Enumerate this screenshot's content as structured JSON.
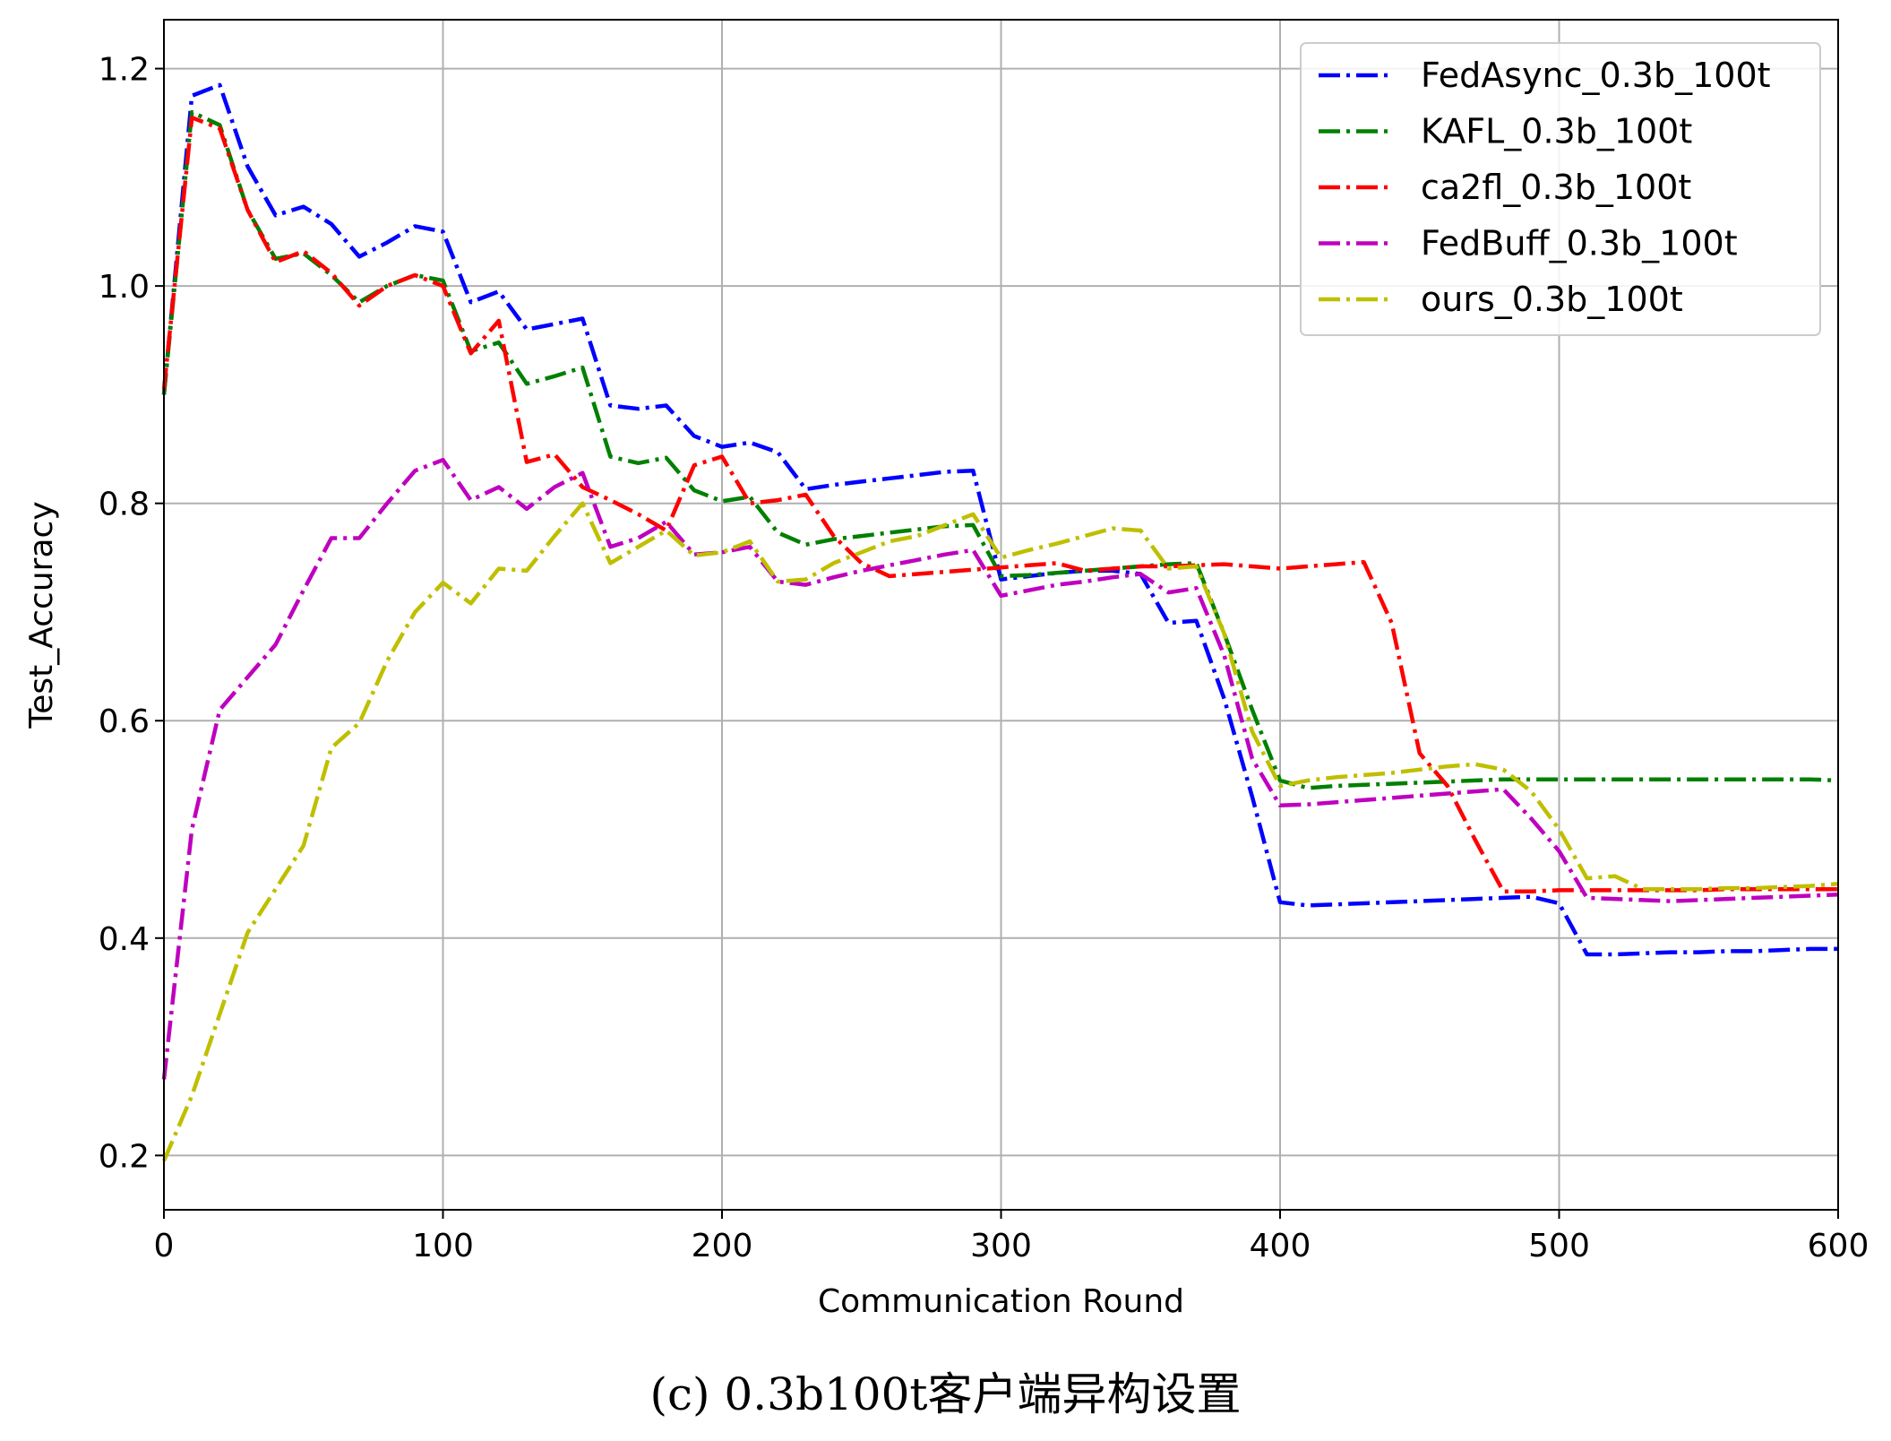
{
  "chart_data": {
    "type": "line",
    "title": "",
    "xlabel": "Communication Round",
    "ylabel": "Test_Accuracy",
    "xlim": [
      0,
      600
    ],
    "ylim": [
      0.15,
      1.245
    ],
    "xticks": [
      0,
      100,
      200,
      300,
      400,
      500,
      600
    ],
    "yticks": [
      0.2,
      0.4,
      0.6,
      0.8,
      1.0,
      1.2
    ],
    "xtick_labels": [
      "0",
      "100",
      "200",
      "300",
      "400",
      "500",
      "600"
    ],
    "ytick_labels": [
      "0.2",
      "0.4",
      "0.6",
      "0.8",
      "1.0",
      "1.2"
    ],
    "grid": true,
    "legend_position": "top-right",
    "line_style": "dash-dot",
    "series": [
      {
        "name": "FedAsync_0.3b_100t",
        "color": "#0000ff",
        "x": [
          0,
          10,
          20,
          30,
          40,
          50,
          60,
          70,
          80,
          90,
          100,
          110,
          120,
          130,
          140,
          150,
          160,
          170,
          180,
          190,
          200,
          210,
          220,
          230,
          240,
          250,
          260,
          270,
          280,
          290,
          300,
          310,
          320,
          330,
          340,
          350,
          360,
          370,
          380,
          390,
          400,
          410,
          420,
          430,
          440,
          450,
          460,
          470,
          480,
          490,
          500,
          510,
          520,
          530,
          540,
          550,
          560,
          570,
          580,
          590,
          600
        ],
        "values": [
          0.9,
          1.175,
          1.185,
          1.11,
          1.065,
          1.073,
          1.057,
          1.027,
          1.04,
          1.055,
          1.05,
          0.985,
          0.995,
          0.96,
          0.965,
          0.97,
          0.89,
          0.887,
          0.89,
          0.862,
          0.852,
          0.856,
          0.847,
          0.813,
          0.817,
          0.82,
          0.823,
          0.826,
          0.829,
          0.83,
          0.73,
          0.733,
          0.736,
          0.738,
          0.738,
          0.735,
          0.69,
          0.692,
          0.62,
          0.53,
          0.433,
          0.43,
          0.431,
          0.432,
          0.433,
          0.434,
          0.435,
          0.436,
          0.437,
          0.438,
          0.432,
          0.385,
          0.385,
          0.386,
          0.387,
          0.387,
          0.388,
          0.388,
          0.389,
          0.39,
          0.39
        ]
      },
      {
        "name": "KAFL_0.3b_100t",
        "color": "#008000",
        "x": [
          0,
          10,
          20,
          30,
          40,
          50,
          60,
          70,
          80,
          90,
          100,
          110,
          120,
          130,
          140,
          150,
          160,
          170,
          180,
          190,
          200,
          210,
          220,
          230,
          240,
          250,
          260,
          270,
          280,
          290,
          300,
          310,
          320,
          330,
          340,
          350,
          360,
          370,
          380,
          390,
          400,
          410,
          420,
          430,
          440,
          450,
          460,
          470,
          480,
          490,
          500,
          510,
          520,
          530,
          540,
          550,
          560,
          570,
          580,
          590,
          600
        ],
        "values": [
          0.9,
          1.16,
          1.148,
          1.07,
          1.025,
          1.03,
          1.01,
          0.985,
          1.0,
          1.01,
          1.005,
          0.94,
          0.948,
          0.91,
          0.917,
          0.925,
          0.843,
          0.837,
          0.842,
          0.812,
          0.802,
          0.806,
          0.773,
          0.762,
          0.767,
          0.77,
          0.773,
          0.776,
          0.779,
          0.78,
          0.733,
          0.734,
          0.736,
          0.738,
          0.74,
          0.742,
          0.744,
          0.745,
          0.68,
          0.61,
          0.545,
          0.538,
          0.54,
          0.541,
          0.542,
          0.543,
          0.544,
          0.545,
          0.546,
          0.546,
          0.546,
          0.546,
          0.546,
          0.546,
          0.546,
          0.546,
          0.546,
          0.546,
          0.546,
          0.546,
          0.545
        ]
      },
      {
        "name": "ca2fl_0.3b_100t",
        "color": "#ff0000",
        "x": [
          0,
          10,
          20,
          30,
          40,
          50,
          60,
          70,
          80,
          90,
          100,
          110,
          120,
          130,
          140,
          150,
          160,
          170,
          180,
          190,
          200,
          210,
          220,
          230,
          240,
          250,
          260,
          270,
          280,
          290,
          300,
          310,
          320,
          330,
          340,
          350,
          360,
          370,
          380,
          390,
          400,
          410,
          420,
          430,
          440,
          450,
          460,
          470,
          480,
          490,
          500,
          510,
          520,
          530,
          540,
          550,
          560,
          570,
          580,
          590,
          600
        ],
        "values": [
          0.905,
          1.155,
          1.145,
          1.07,
          1.022,
          1.032,
          1.012,
          0.982,
          1.0,
          1.01,
          1.0,
          0.938,
          0.968,
          0.838,
          0.845,
          0.815,
          0.803,
          0.79,
          0.775,
          0.835,
          0.843,
          0.8,
          0.803,
          0.808,
          0.77,
          0.745,
          0.733,
          0.735,
          0.737,
          0.739,
          0.741,
          0.743,
          0.745,
          0.738,
          0.74,
          0.742,
          0.742,
          0.743,
          0.744,
          0.742,
          0.74,
          0.742,
          0.744,
          0.746,
          0.69,
          0.57,
          0.54,
          0.49,
          0.443,
          0.443,
          0.444,
          0.444,
          0.444,
          0.444,
          0.444,
          0.444,
          0.445,
          0.445,
          0.445,
          0.445,
          0.445
        ]
      },
      {
        "name": "FedBuff_0.3b_100t",
        "color": "#bf00bf",
        "x": [
          0,
          10,
          20,
          30,
          40,
          50,
          60,
          70,
          80,
          90,
          100,
          110,
          120,
          130,
          140,
          150,
          160,
          170,
          180,
          190,
          200,
          210,
          220,
          230,
          240,
          250,
          260,
          270,
          280,
          290,
          300,
          310,
          320,
          330,
          340,
          350,
          360,
          370,
          380,
          390,
          400,
          410,
          420,
          430,
          440,
          450,
          460,
          470,
          480,
          490,
          500,
          510,
          520,
          530,
          540,
          550,
          560,
          570,
          580,
          590,
          600
        ],
        "values": [
          0.27,
          0.5,
          0.61,
          0.64,
          0.67,
          0.72,
          0.768,
          0.768,
          0.8,
          0.83,
          0.84,
          0.803,
          0.815,
          0.795,
          0.815,
          0.828,
          0.76,
          0.768,
          0.783,
          0.753,
          0.755,
          0.76,
          0.728,
          0.725,
          0.732,
          0.738,
          0.743,
          0.748,
          0.753,
          0.757,
          0.715,
          0.72,
          0.725,
          0.728,
          0.732,
          0.735,
          0.718,
          0.722,
          0.66,
          0.565,
          0.522,
          0.523,
          0.525,
          0.527,
          0.529,
          0.531,
          0.533,
          0.535,
          0.537,
          0.51,
          0.48,
          0.437,
          0.436,
          0.435,
          0.434,
          0.435,
          0.436,
          0.437,
          0.438,
          0.439,
          0.44
        ]
      },
      {
        "name": "ours_0.3b_100t",
        "color": "#bfbf00",
        "x": [
          0,
          10,
          20,
          30,
          40,
          50,
          60,
          70,
          80,
          90,
          100,
          110,
          120,
          130,
          140,
          150,
          160,
          170,
          180,
          190,
          200,
          210,
          220,
          230,
          240,
          250,
          260,
          270,
          280,
          290,
          300,
          310,
          320,
          330,
          340,
          350,
          360,
          370,
          380,
          390,
          400,
          410,
          420,
          430,
          440,
          450,
          460,
          470,
          480,
          490,
          500,
          510,
          520,
          530,
          540,
          550,
          560,
          570,
          580,
          590,
          600
        ],
        "values": [
          0.195,
          0.255,
          0.33,
          0.405,
          0.445,
          0.485,
          0.575,
          0.598,
          0.655,
          0.7,
          0.727,
          0.708,
          0.74,
          0.738,
          0.77,
          0.8,
          0.745,
          0.76,
          0.775,
          0.752,
          0.755,
          0.765,
          0.728,
          0.73,
          0.745,
          0.755,
          0.765,
          0.77,
          0.78,
          0.79,
          0.75,
          0.757,
          0.763,
          0.77,
          0.777,
          0.775,
          0.74,
          0.742,
          0.68,
          0.59,
          0.54,
          0.545,
          0.548,
          0.55,
          0.552,
          0.555,
          0.558,
          0.56,
          0.555,
          0.535,
          0.5,
          0.455,
          0.457,
          0.445,
          0.445,
          0.445,
          0.446,
          0.446,
          0.447,
          0.448,
          0.45
        ]
      }
    ]
  },
  "caption": "(c) 0.3b100t客户端异构设置"
}
